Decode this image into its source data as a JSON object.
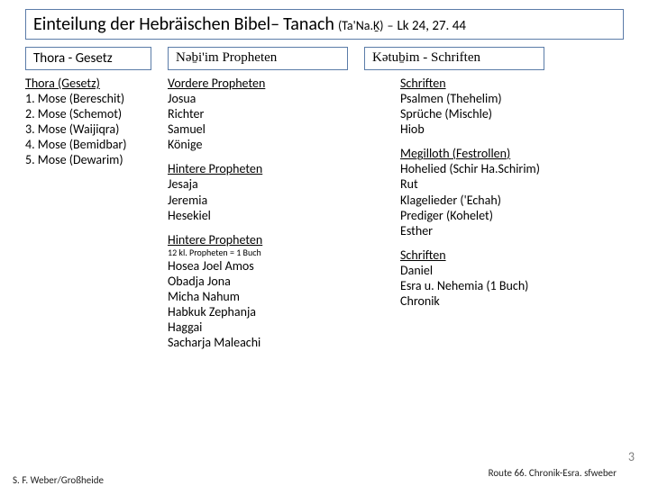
{
  "title": {
    "main": "Einteilung der Hebräischen Bibel",
    "dash1": " – ",
    "tanach": "Tanach",
    "paren": "(Ta'Na.Ḵ)",
    "dash2": " – ",
    "ref": "Lk 24, 27. 44"
  },
  "headers": {
    "h1": "Thora - Gesetz",
    "h2": "Nəḇi'im Propheten",
    "h3": "Kətuḇim - Schriften"
  },
  "col1": {
    "s1": {
      "title": "Thora (Gesetz)",
      "items": [
        "1. Mose (Bereschit)",
        "2. Mose (Schemot)",
        "3. Mose (Waijiqra)",
        "4. Mose (Bemidbar)",
        "5. Mose (Dewarim)"
      ]
    }
  },
  "col2": {
    "s1": {
      "title": "Vordere Propheten",
      "items": [
        "Josua",
        "Richter",
        "Samuel",
        "Könige"
      ]
    },
    "s2": {
      "title": "Hintere Propheten",
      "items": [
        "Jesaja",
        "Jeremia",
        "Hesekiel"
      ]
    },
    "s3": {
      "title": "Hintere Propheten",
      "sub": "12 kl. Propheten = 1 Buch",
      "items": [
        "Hosea Joel Amos",
        "Obadja Jona",
        "Micha Nahum",
        "Habkuk Zephanja",
        "Haggai",
        "Sacharja Maleachi"
      ]
    }
  },
  "col3": {
    "s1": {
      "title": "Schriften",
      "items": [
        "Psalmen (Thehelim)",
        "Sprüche (Mischle)",
        "Hiob"
      ]
    },
    "s2": {
      "title": "Megilloth (Festrollen)",
      "items": [
        "Hohelied (Schir Ha.Schirim)",
        "Rut",
        "Klagelieder ('Echah)",
        "Prediger (Kohelet)",
        "Esther"
      ]
    },
    "s3": {
      "title": "Schriften",
      "items": [
        "Daniel",
        "Esra u. Nehemia (1 Buch)",
        "Chronik"
      ]
    }
  },
  "footer": {
    "left": "S. F. Weber/Großheide",
    "right": "Route 66. Chronik-Esra. sfweber",
    "page": "3"
  },
  "colors": {
    "border": "#5b7ca8",
    "bg": "#ffffff",
    "text": "#000000",
    "gray": "#808080"
  }
}
